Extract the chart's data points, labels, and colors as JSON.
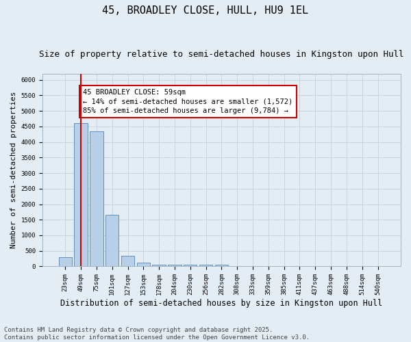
{
  "title": "45, BROADLEY CLOSE, HULL, HU9 1EL",
  "subtitle": "Size of property relative to semi-detached houses in Kingston upon Hull",
  "xlabel": "Distribution of semi-detached houses by size in Kingston upon Hull",
  "ylabel": "Number of semi-detached properties",
  "categories": [
    "23sqm",
    "49sqm",
    "75sqm",
    "101sqm",
    "127sqm",
    "153sqm",
    "178sqm",
    "204sqm",
    "230sqm",
    "256sqm",
    "282sqm",
    "308sqm",
    "333sqm",
    "359sqm",
    "385sqm",
    "411sqm",
    "437sqm",
    "463sqm",
    "488sqm",
    "514sqm",
    "540sqm"
  ],
  "values": [
    305,
    4600,
    4350,
    1650,
    350,
    130,
    65,
    55,
    50,
    50,
    50,
    0,
    0,
    0,
    0,
    0,
    0,
    0,
    0,
    0,
    0
  ],
  "bar_color": "#b8cfe8",
  "bar_edge_color": "#6090c0",
  "annotation_line1": "45 BROADLEY CLOSE: 59sqm",
  "annotation_line2": "← 14% of semi-detached houses are smaller (1,572)",
  "annotation_line3": "85% of semi-detached houses are larger (9,784) →",
  "annotation_box_color": "#ffffff",
  "annotation_box_edge": "#cc0000",
  "vline_color": "#cc0000",
  "grid_color": "#c8d4e4",
  "bg_color": "#e4ecf4",
  "ylim_max": 6200,
  "yticks": [
    0,
    500,
    1000,
    1500,
    2000,
    2500,
    3000,
    3500,
    4000,
    4500,
    5000,
    5500,
    6000
  ],
  "footer": "Contains HM Land Registry data © Crown copyright and database right 2025.\nContains public sector information licensed under the Open Government Licence v3.0.",
  "title_fontsize": 11,
  "subtitle_fontsize": 9,
  "tick_fontsize": 6.5,
  "ylabel_fontsize": 8,
  "xlabel_fontsize": 8.5,
  "annotation_fontsize": 7.5,
  "footer_fontsize": 6.5
}
